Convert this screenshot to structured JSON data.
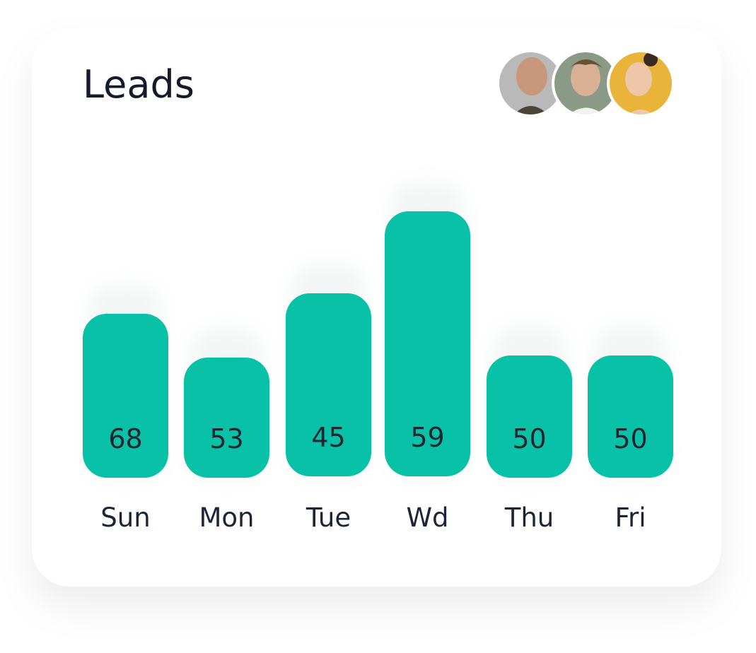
{
  "card": {
    "title": "Leads",
    "bars": [
      {
        "day": "Sun",
        "value": 68
      },
      {
        "day": "Mon",
        "value": 53
      },
      {
        "day": "Tue",
        "value": 45
      },
      {
        "day": "Wd",
        "value": 59
      },
      {
        "day": "Thu",
        "value": 50
      },
      {
        "day": "Fri",
        "value": 50
      }
    ]
  }
}
